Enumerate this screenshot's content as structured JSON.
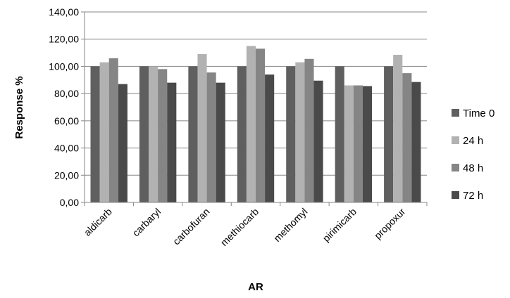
{
  "chart_data": {
    "type": "bar",
    "xlabel": "AR",
    "ylabel": "Response %",
    "ylim": [
      0,
      140
    ],
    "ytick_step": 20,
    "ytick_labels": [
      "0,00",
      "20,00",
      "40,00",
      "60,00",
      "80,00",
      "100,00",
      "120,00",
      "140,00"
    ],
    "grid": true,
    "legend_position": "right",
    "categories": [
      "aldicarb",
      "carbaryl",
      "carbofuran",
      "methiocarb",
      "methomyl",
      "pirimicarb",
      "propoxur"
    ],
    "series": [
      {
        "name": "Time 0",
        "color": "#5f5f5f",
        "values": [
          100,
          100,
          100,
          100,
          100,
          100,
          100
        ]
      },
      {
        "name": "24 h",
        "color": "#b2b2b2",
        "values": [
          103,
          100,
          109,
          115,
          103,
          86,
          108.5
        ]
      },
      {
        "name": "48 h",
        "color": "#858585",
        "values": [
          106,
          98,
          95.5,
          113,
          105.5,
          86,
          95
        ]
      },
      {
        "name": "72 h",
        "color": "#4a4a4a",
        "values": [
          87,
          88,
          88,
          94,
          89.5,
          85.5,
          88.5
        ]
      }
    ]
  }
}
